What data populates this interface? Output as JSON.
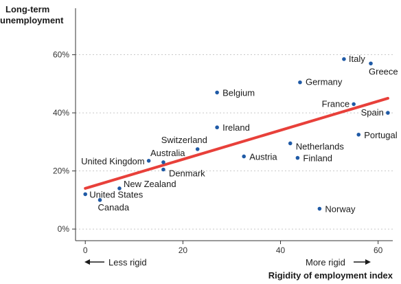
{
  "chart_data": {
    "type": "scatter",
    "ylabel_lines": [
      "Long-term",
      "unemployment"
    ],
    "xlabel": "Rigidity of employment index",
    "x_ticks": [
      0,
      20,
      40,
      60
    ],
    "y_ticks": [
      0,
      20,
      40,
      60
    ],
    "y_tick_labels": [
      "0%",
      "20%",
      "40%",
      "60%"
    ],
    "x_tick_labels": [
      "0",
      "20",
      "40",
      "60"
    ],
    "xlim": [
      -2,
      63
    ],
    "ylim": [
      -4,
      76
    ],
    "grid": "y-dashed",
    "marker_color": "#1f5aa6",
    "trend_color": "#e8403a",
    "trend_line": {
      "x": [
        0,
        62
      ],
      "y": [
        14,
        45
      ]
    },
    "points": [
      {
        "label": "Italy",
        "x": 53,
        "y": 58.5
      },
      {
        "label": "Greece",
        "x": 58.5,
        "y": 57
      },
      {
        "label": "Germany",
        "x": 44,
        "y": 50.5
      },
      {
        "label": "Belgium",
        "x": 27,
        "y": 47
      },
      {
        "label": "France",
        "x": 55,
        "y": 43
      },
      {
        "label": "Spain",
        "x": 62,
        "y": 40
      },
      {
        "label": "Ireland",
        "x": 27,
        "y": 35
      },
      {
        "label": "Portugal",
        "x": 56,
        "y": 32.5
      },
      {
        "label": "Netherlands",
        "x": 42,
        "y": 29.5
      },
      {
        "label": "Switzerland",
        "x": 23,
        "y": 27.5
      },
      {
        "label": "Austria",
        "x": 32.5,
        "y": 25
      },
      {
        "label": "Finland",
        "x": 43.5,
        "y": 24.5
      },
      {
        "label": "Australia",
        "x": 16,
        "y": 23
      },
      {
        "label": "United Kingdom",
        "x": 13,
        "y": 23.5
      },
      {
        "label": "Denmark",
        "x": 16,
        "y": 20.5
      },
      {
        "label": "New Zealand",
        "x": 7,
        "y": 14
      },
      {
        "label": "United States",
        "x": 0,
        "y": 12
      },
      {
        "label": "Canada",
        "x": 3,
        "y": 10
      },
      {
        "label": "Norway",
        "x": 48,
        "y": 7
      }
    ],
    "annotations": {
      "less": "Less rigid",
      "more": "More rigid"
    }
  }
}
